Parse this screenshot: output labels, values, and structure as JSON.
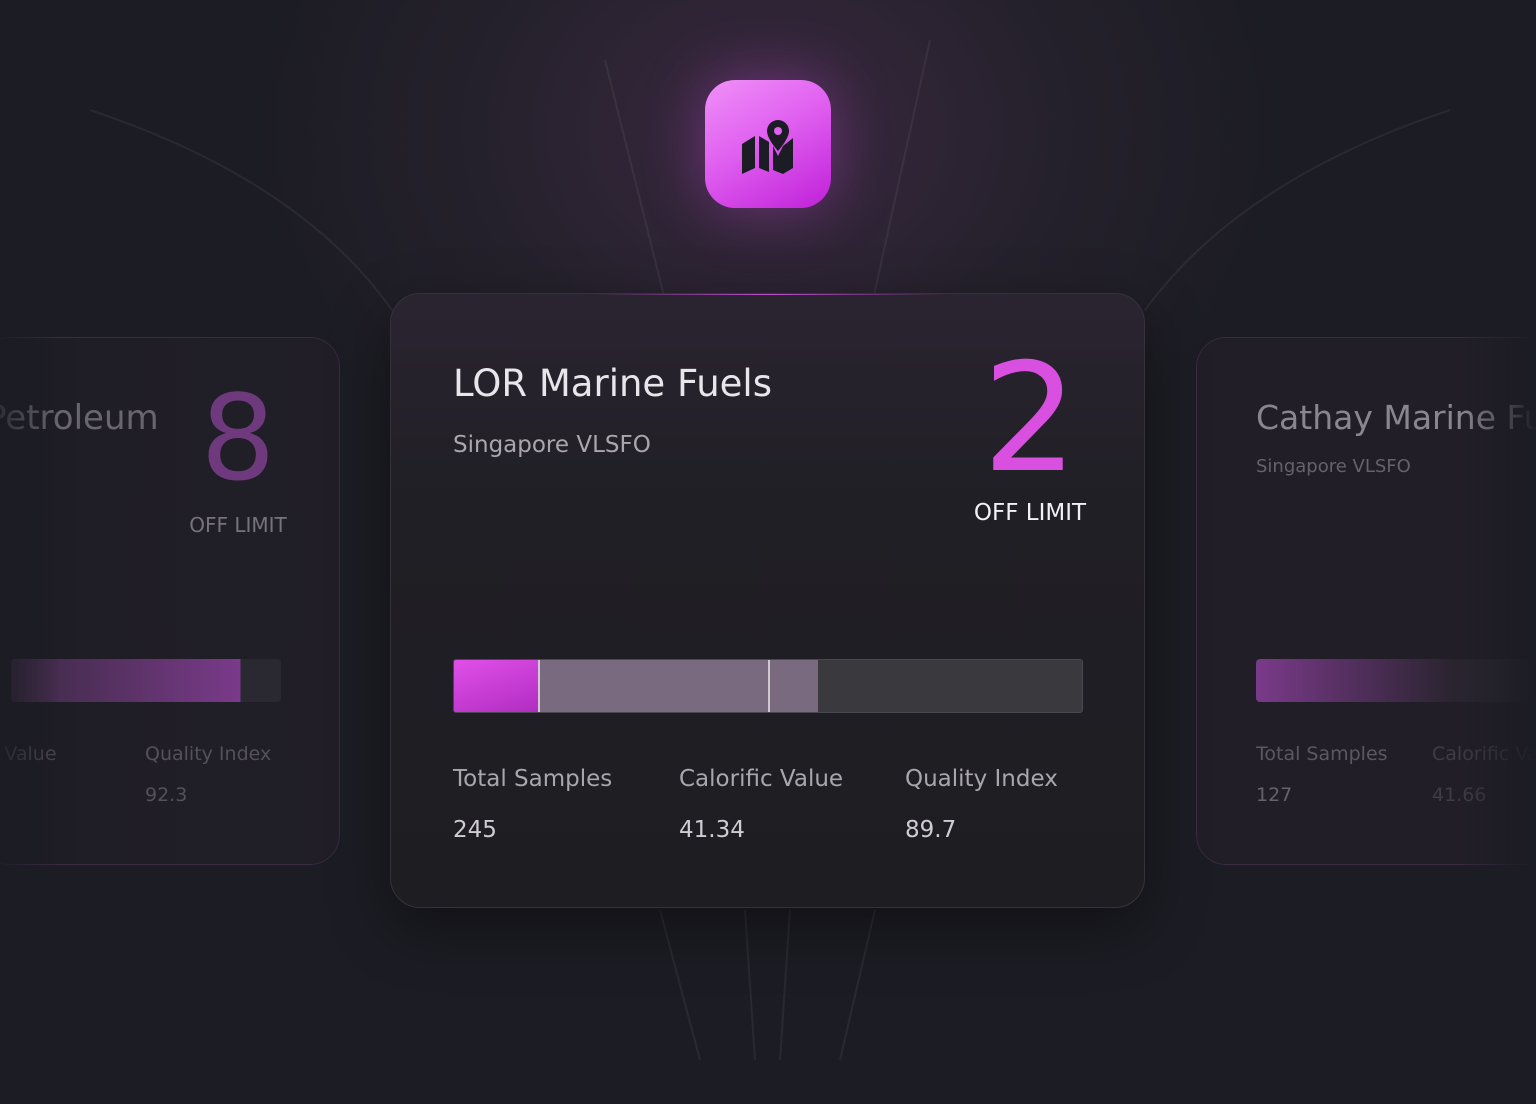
{
  "cards": [
    {
      "title": "Petroleum",
      "count": 8,
      "status": "OFF LIMIT",
      "stats": [
        {
          "label": "Calorific Value"
        },
        {
          "label": "Quality Index",
          "value": 92.3
        }
      ]
    },
    {
      "title": "LOR Marine Fuels",
      "subtitle": "Singapore VLSFO",
      "count": 2,
      "status": "OFF LIMIT",
      "stats": [
        {
          "label": "Total Samples",
          "value": 245
        },
        {
          "label": "Calorific Value",
          "value": 41.34
        },
        {
          "label": "Quality Index",
          "value": 89.7
        }
      ]
    },
    {
      "title": "Cathay Marine Fuels",
      "subtitle": "Singapore VLSFO",
      "stats": [
        {
          "label": "Total Samples",
          "value": 127
        },
        {
          "label": "Calorific Value",
          "value": 41.66
        }
      ]
    }
  ]
}
